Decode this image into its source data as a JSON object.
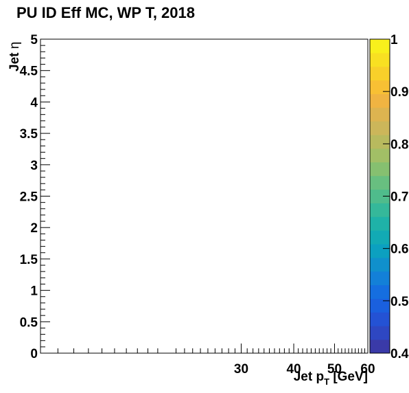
{
  "chart_data": {
    "type": "heatmap",
    "title": "PU ID Eff MC, WP T, 2018",
    "xlabel": {
      "main": "Jet p",
      "sub": "T",
      "unit": " [GeV]"
    },
    "ylabel": {
      "main": "Jet ",
      "symbol": "η"
    },
    "x_scale": "log",
    "xlim": [
      10,
      60
    ],
    "ylim": [
      0,
      5
    ],
    "x_ticks": [
      {
        "value": 30,
        "label": "30"
      },
      {
        "value": 40,
        "label": "40"
      },
      {
        "value": 50,
        "label": "50"
      },
      {
        "value": 60,
        "label": "60"
      }
    ],
    "y_ticks": [
      {
        "value": 0,
        "label": "0"
      },
      {
        "value": 0.5,
        "label": "0.5"
      },
      {
        "value": 1,
        "label": "1"
      },
      {
        "value": 1.5,
        "label": "1.5"
      },
      {
        "value": 2,
        "label": "2"
      },
      {
        "value": 2.5,
        "label": "2.5"
      },
      {
        "value": 3,
        "label": "3"
      },
      {
        "value": 3.5,
        "label": "3.5"
      },
      {
        "value": 4,
        "label": "4"
      },
      {
        "value": 4.5,
        "label": "4.5"
      },
      {
        "value": 5,
        "label": "5"
      }
    ],
    "cells": [],
    "colorbar": {
      "range": [
        0.4,
        1.0
      ],
      "ticks": [
        {
          "value": 0.4,
          "label": "0.4"
        },
        {
          "value": 0.5,
          "label": "0.5"
        },
        {
          "value": 0.6,
          "label": "0.6"
        },
        {
          "value": 0.7,
          "label": "0.7"
        },
        {
          "value": 0.8,
          "label": "0.8"
        },
        {
          "value": 0.9,
          "label": "0.9"
        },
        {
          "value": 1.0,
          "label": "1"
        }
      ],
      "colors": [
        "#3a3aa8",
        "#2e47c2",
        "#2452d4",
        "#1a60de",
        "#156ee0",
        "#1380d8",
        "#1090cc",
        "#0ca0c0",
        "#12aab4",
        "#1fb2a8",
        "#35b89a",
        "#4fbc8c",
        "#68bf80",
        "#86c070",
        "#a2bf66",
        "#b8ba5e",
        "#ccb65a",
        "#ddb450",
        "#f0b442",
        "#f8c034",
        "#f8d02a",
        "#f8e022",
        "#f8f01c"
      ]
    }
  }
}
